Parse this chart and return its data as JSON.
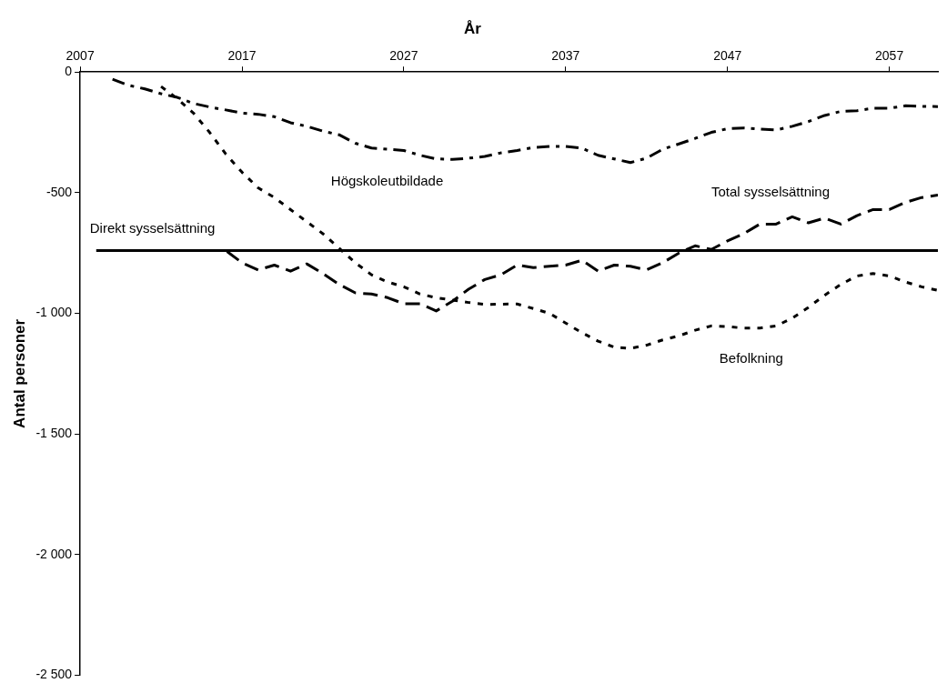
{
  "chart_data": {
    "type": "line",
    "title": "År",
    "ylabel": "Antal personer",
    "x": [
      2008,
      2009,
      2010,
      2011,
      2012,
      2013,
      2014,
      2015,
      2016,
      2017,
      2018,
      2019,
      2020,
      2021,
      2022,
      2023,
      2024,
      2025,
      2026,
      2027,
      2028,
      2029,
      2030,
      2031,
      2032,
      2033,
      2034,
      2035,
      2036,
      2037,
      2038,
      2039,
      2040,
      2041,
      2042,
      2043,
      2044,
      2045,
      2046,
      2047,
      2048,
      2049,
      2050,
      2051,
      2052,
      2053,
      2054,
      2055,
      2056,
      2057,
      2058,
      2059,
      2060
    ],
    "series": [
      {
        "name": "Direkt sysselsättning",
        "color": "#000000",
        "line_style": "solid",
        "values": [
          -740,
          -740,
          -740,
          -740,
          -740,
          -740,
          -740,
          -740,
          -740,
          -740,
          -740,
          -740,
          -740,
          -740,
          -740,
          -740,
          -740,
          -740,
          -740,
          -740,
          -740,
          -740,
          -740,
          -740,
          -740,
          -740,
          -740,
          -740,
          -740,
          -740,
          -740,
          -740,
          -740,
          -740,
          -740,
          -740,
          -740,
          -740,
          -740,
          -740,
          -740,
          -740,
          -740,
          -740,
          -740,
          -740,
          -740,
          -740,
          -740,
          -740,
          -740,
          -740,
          -740
        ]
      },
      {
        "name": "Total sysselsättning",
        "color": "#000000",
        "line_style": "dashed",
        "values": [
          -740,
          -740,
          -740,
          -740,
          -740,
          -740,
          -740,
          -740,
          -740,
          -790,
          -820,
          -800,
          -825,
          -795,
          -835,
          -880,
          -915,
          -920,
          -935,
          -960,
          -960,
          -990,
          -950,
          -900,
          -860,
          -840,
          -800,
          -810,
          -805,
          -800,
          -780,
          -825,
          -800,
          -805,
          -820,
          -790,
          -750,
          -720,
          -735,
          -700,
          -670,
          -630,
          -630,
          -600,
          -625,
          -605,
          -630,
          -595,
          -570,
          -570,
          -540,
          -520,
          -510
        ]
      },
      {
        "name": "Högskoleutbildade",
        "color": "#000000",
        "line_style": "dashdot",
        "values": [
          null,
          -30,
          -55,
          -70,
          -90,
          -105,
          -130,
          -145,
          -157,
          -170,
          -175,
          -185,
          -210,
          -225,
          -245,
          -260,
          -295,
          -315,
          -320,
          -325,
          -345,
          -360,
          -362,
          -357,
          -350,
          -335,
          -325,
          -313,
          -308,
          -308,
          -315,
          -345,
          -360,
          -375,
          -357,
          -320,
          -298,
          -275,
          -250,
          -235,
          -232,
          -236,
          -240,
          -225,
          -205,
          -180,
          -163,
          -160,
          -150,
          -150,
          -140,
          -142,
          -143
        ]
      },
      {
        "name": "Befolkning",
        "color": "#000000",
        "line_style": "dotted",
        "values": [
          null,
          null,
          null,
          null,
          -60,
          -110,
          -170,
          -250,
          -340,
          -415,
          -480,
          -520,
          -570,
          -620,
          -670,
          -730,
          -790,
          -840,
          -870,
          -890,
          -920,
          -935,
          -945,
          -955,
          -963,
          -962,
          -961,
          -980,
          -1000,
          -1040,
          -1080,
          -1115,
          -1140,
          -1145,
          -1132,
          -1110,
          -1093,
          -1070,
          -1052,
          -1055,
          -1061,
          -1061,
          -1052,
          -1020,
          -975,
          -925,
          -880,
          -845,
          -835,
          -845,
          -870,
          -890,
          -905
        ]
      }
    ],
    "xlim": [
      2007,
      2060
    ],
    "xticks": [
      2007,
      2017,
      2027,
      2037,
      2047,
      2057
    ],
    "ylim": [
      -2500,
      0
    ],
    "yticks": [
      0,
      -500,
      {
        "value": -1000,
        "label": "-1 000"
      },
      {
        "value": -1500,
        "label": "-1 500"
      },
      {
        "value": -2000,
        "label": "-2 000"
      },
      {
        "value": -2500,
        "label": "-2 500"
      }
    ],
    "grid": false,
    "legend": false,
    "marker": "none"
  }
}
